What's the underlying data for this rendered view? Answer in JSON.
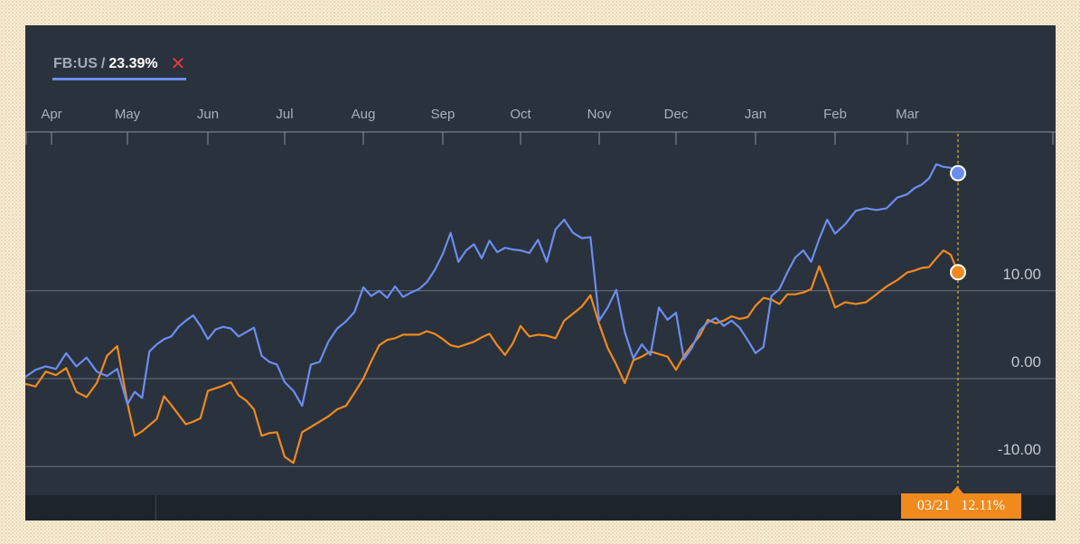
{
  "legend": {
    "ticker": "FB:US",
    "separator": "/",
    "change": "23.39%",
    "close_symbol": "✕"
  },
  "cursor": {
    "date": "03/21",
    "value": "12.11%"
  },
  "colors": {
    "panel_bg": "#2a323d",
    "primary_series": "#6b8df0",
    "comparison_series": "#f08a1c",
    "close_icon": "#e03c3c",
    "gridline": "#6a7280"
  },
  "chart_data": {
    "type": "line",
    "title": "",
    "xlabel": "",
    "ylabel": "",
    "x_ticks": [
      "Apr",
      "May",
      "Jun",
      "Jul",
      "Aug",
      "Sep",
      "Oct",
      "Nov",
      "Dec",
      "Jan",
      "Feb",
      "Mar"
    ],
    "y_ticks": [
      {
        "value": 10,
        "label": "10.00"
      },
      {
        "value": 0,
        "label": "0.00"
      },
      {
        "value": -10,
        "label": "-10.00"
      }
    ],
    "ylim": [
      -10,
      28
    ],
    "grid": "horizontal",
    "series": [
      {
        "name": "FB:US",
        "color": "#6b8df0",
        "end_value": 23.39,
        "points": [
          [
            "Apr",
            0.2
          ],
          [
            "Apr",
            1.0
          ],
          [
            "Apr",
            1.4
          ],
          [
            "Apr",
            1.1
          ],
          [
            "Apr",
            2.9
          ],
          [
            "Apr",
            1.4
          ],
          [
            "Apr",
            2.4
          ],
          [
            "Apr",
            0.8
          ],
          [
            "Apr",
            0.3
          ],
          [
            "Apr",
            1.1
          ],
          [
            "May",
            -2.9
          ],
          [
            "May",
            -1.5
          ],
          [
            "May",
            -2.2
          ],
          [
            "May",
            3.1
          ],
          [
            "May",
            3.9
          ],
          [
            "May",
            4.5
          ],
          [
            "May",
            4.8
          ],
          [
            "May",
            5.9
          ],
          [
            "May",
            6.6
          ],
          [
            "May",
            7.2
          ],
          [
            "May",
            6.0
          ],
          [
            "Jun",
            4.5
          ],
          [
            "Jun",
            5.6
          ],
          [
            "Jun",
            5.9
          ],
          [
            "Jun",
            5.7
          ],
          [
            "Jun",
            4.8
          ],
          [
            "Jun",
            5.3
          ],
          [
            "Jun",
            5.8
          ],
          [
            "Jun",
            2.6
          ],
          [
            "Jun",
            1.9
          ],
          [
            "Jun",
            1.6
          ],
          [
            "Jul",
            -0.4
          ],
          [
            "Jul",
            -1.4
          ],
          [
            "Jul",
            -3.1
          ],
          [
            "Jul",
            1.6
          ],
          [
            "Jul",
            1.9
          ],
          [
            "Jul",
            4.2
          ],
          [
            "Jul",
            5.7
          ],
          [
            "Jul",
            6.5
          ],
          [
            "Jul",
            7.6
          ],
          [
            "Aug",
            10.4
          ],
          [
            "Aug",
            9.4
          ],
          [
            "Aug",
            10.0
          ],
          [
            "Aug",
            9.2
          ],
          [
            "Aug",
            10.5
          ],
          [
            "Aug",
            9.3
          ],
          [
            "Aug",
            9.8
          ],
          [
            "Aug",
            10.2
          ],
          [
            "Aug",
            11.0
          ],
          [
            "Aug",
            12.4
          ],
          [
            "Sep",
            14.2
          ],
          [
            "Sep",
            16.6
          ],
          [
            "Sep",
            13.3
          ],
          [
            "Sep",
            14.6
          ],
          [
            "Sep",
            15.3
          ],
          [
            "Sep",
            13.7
          ],
          [
            "Sep",
            15.7
          ],
          [
            "Sep",
            14.4
          ],
          [
            "Sep",
            14.9
          ],
          [
            "Sep",
            14.7
          ],
          [
            "Oct",
            14.6
          ],
          [
            "Oct",
            14.3
          ],
          [
            "Oct",
            15.8
          ],
          [
            "Oct",
            13.3
          ],
          [
            "Oct",
            17.0
          ],
          [
            "Oct",
            18.1
          ],
          [
            "Oct",
            16.6
          ],
          [
            "Oct",
            16.0
          ],
          [
            "Oct",
            16.1
          ],
          [
            "Nov",
            6.6
          ],
          [
            "Nov",
            8.1
          ],
          [
            "Nov",
            10.1
          ],
          [
            "Nov",
            5.3
          ],
          [
            "Nov",
            2.3
          ],
          [
            "Nov",
            3.9
          ],
          [
            "Nov",
            2.7
          ],
          [
            "Nov",
            8.1
          ],
          [
            "Nov",
            6.7
          ],
          [
            "Dec",
            7.5
          ],
          [
            "Dec",
            2.2
          ],
          [
            "Dec",
            3.5
          ],
          [
            "Dec",
            5.5
          ],
          [
            "Dec",
            6.4
          ],
          [
            "Dec",
            6.9
          ],
          [
            "Dec",
            6.0
          ],
          [
            "Dec",
            6.6
          ],
          [
            "Dec",
            5.8
          ],
          [
            "Dec",
            4.4
          ],
          [
            "Jan",
            2.9
          ],
          [
            "Jan",
            3.6
          ],
          [
            "Jan",
            9.4
          ],
          [
            "Jan",
            10.2
          ],
          [
            "Jan",
            12.1
          ],
          [
            "Jan",
            13.8
          ],
          [
            "Jan",
            14.6
          ],
          [
            "Jan",
            13.3
          ],
          [
            "Jan",
            15.9
          ],
          [
            "Jan",
            18.1
          ],
          [
            "Feb",
            16.5
          ],
          [
            "Feb",
            17.6
          ],
          [
            "Feb",
            19.1
          ],
          [
            "Feb",
            19.4
          ],
          [
            "Feb",
            19.2
          ],
          [
            "Feb",
            19.4
          ],
          [
            "Feb",
            20.6
          ],
          [
            "Mar",
            21.0
          ],
          [
            "Mar",
            21.7
          ],
          [
            "Mar",
            22.1
          ],
          [
            "Mar",
            22.8
          ],
          [
            "Mar",
            24.4
          ],
          [
            "Mar",
            24.1
          ],
          [
            "Mar",
            24.0
          ],
          [
            "Mar",
            23.4
          ]
        ]
      },
      {
        "name": "",
        "color": "#f08a1c",
        "end_value": 12.11,
        "points": [
          [
            "Apr",
            -0.6
          ],
          [
            "Apr",
            -0.9
          ],
          [
            "Apr",
            0.8
          ],
          [
            "Apr",
            0.4
          ],
          [
            "Apr",
            1.2
          ],
          [
            "Apr",
            -1.5
          ],
          [
            "Apr",
            -2.1
          ],
          [
            "Apr",
            -0.5
          ],
          [
            "Apr",
            2.6
          ],
          [
            "Apr",
            3.7
          ],
          [
            "May",
            -2.8
          ],
          [
            "May",
            -6.5
          ],
          [
            "May",
            -6.0
          ],
          [
            "May",
            -5.3
          ],
          [
            "May",
            -4.6
          ],
          [
            "May",
            -2.0
          ],
          [
            "May",
            -3.0
          ],
          [
            "May",
            -4.1
          ],
          [
            "May",
            -5.2
          ],
          [
            "May",
            -4.9
          ],
          [
            "May",
            -4.5
          ],
          [
            "Jun",
            -1.4
          ],
          [
            "Jun",
            -1.1
          ],
          [
            "Jun",
            -0.8
          ],
          [
            "Jun",
            -0.4
          ],
          [
            "Jun",
            -1.9
          ],
          [
            "Jun",
            -2.5
          ],
          [
            "Jun",
            -3.5
          ],
          [
            "Jun",
            -6.5
          ],
          [
            "Jun",
            -6.2
          ],
          [
            "Jun",
            -6.1
          ],
          [
            "Jul",
            -8.9
          ],
          [
            "Jul",
            -9.6
          ],
          [
            "Jul",
            -6.1
          ],
          [
            "Jul",
            -5.5
          ],
          [
            "Jul",
            -4.9
          ],
          [
            "Jul",
            -4.3
          ],
          [
            "Jul",
            -3.5
          ],
          [
            "Jul",
            -3.1
          ],
          [
            "Jul",
            -1.6
          ],
          [
            "Aug",
            0.0
          ],
          [
            "Aug",
            2.0
          ],
          [
            "Aug",
            3.8
          ],
          [
            "Aug",
            4.4
          ],
          [
            "Aug",
            4.6
          ],
          [
            "Aug",
            5.0
          ],
          [
            "Aug",
            5.0
          ],
          [
            "Aug",
            5.0
          ],
          [
            "Aug",
            5.4
          ],
          [
            "Aug",
            5.1
          ],
          [
            "Sep",
            4.5
          ],
          [
            "Sep",
            3.8
          ],
          [
            "Sep",
            3.6
          ],
          [
            "Sep",
            3.9
          ],
          [
            "Sep",
            4.2
          ],
          [
            "Sep",
            4.7
          ],
          [
            "Sep",
            5.1
          ],
          [
            "Sep",
            3.8
          ],
          [
            "Sep",
            2.7
          ],
          [
            "Sep",
            4.0
          ],
          [
            "Oct",
            6.0
          ],
          [
            "Oct",
            4.8
          ],
          [
            "Oct",
            5.0
          ],
          [
            "Oct",
            4.9
          ],
          [
            "Oct",
            4.6
          ],
          [
            "Oct",
            6.6
          ],
          [
            "Oct",
            7.4
          ],
          [
            "Oct",
            8.2
          ],
          [
            "Oct",
            9.5
          ],
          [
            "Nov",
            6.2
          ],
          [
            "Nov",
            3.5
          ],
          [
            "Nov",
            1.6
          ],
          [
            "Nov",
            -0.5
          ],
          [
            "Nov",
            2.1
          ],
          [
            "Nov",
            2.5
          ],
          [
            "Nov",
            3.1
          ],
          [
            "Nov",
            2.8
          ],
          [
            "Nov",
            2.5
          ],
          [
            "Dec",
            1.0
          ],
          [
            "Dec",
            2.6
          ],
          [
            "Dec",
            3.8
          ],
          [
            "Dec",
            4.9
          ],
          [
            "Dec",
            6.7
          ],
          [
            "Dec",
            6.3
          ],
          [
            "Dec",
            6.6
          ],
          [
            "Dec",
            7.1
          ],
          [
            "Dec",
            6.8
          ],
          [
            "Dec",
            7.0
          ],
          [
            "Jan",
            8.3
          ],
          [
            "Jan",
            9.2
          ],
          [
            "Jan",
            9.0
          ],
          [
            "Jan",
            8.5
          ],
          [
            "Jan",
            9.6
          ],
          [
            "Jan",
            9.6
          ],
          [
            "Jan",
            9.8
          ],
          [
            "Jan",
            10.2
          ],
          [
            "Jan",
            12.8
          ],
          [
            "Jan",
            10.6
          ],
          [
            "Feb",
            8.1
          ],
          [
            "Feb",
            8.7
          ],
          [
            "Feb",
            8.5
          ],
          [
            "Feb",
            8.7
          ],
          [
            "Feb",
            9.6
          ],
          [
            "Feb",
            10.5
          ],
          [
            "Feb",
            11.2
          ],
          [
            "Mar",
            12.1
          ],
          [
            "Mar",
            12.3
          ],
          [
            "Mar",
            12.6
          ],
          [
            "Mar",
            12.7
          ],
          [
            "Mar",
            13.7
          ],
          [
            "Mar",
            14.6
          ],
          [
            "Mar",
            14.1
          ],
          [
            "Mar",
            12.11
          ]
        ]
      }
    ]
  }
}
